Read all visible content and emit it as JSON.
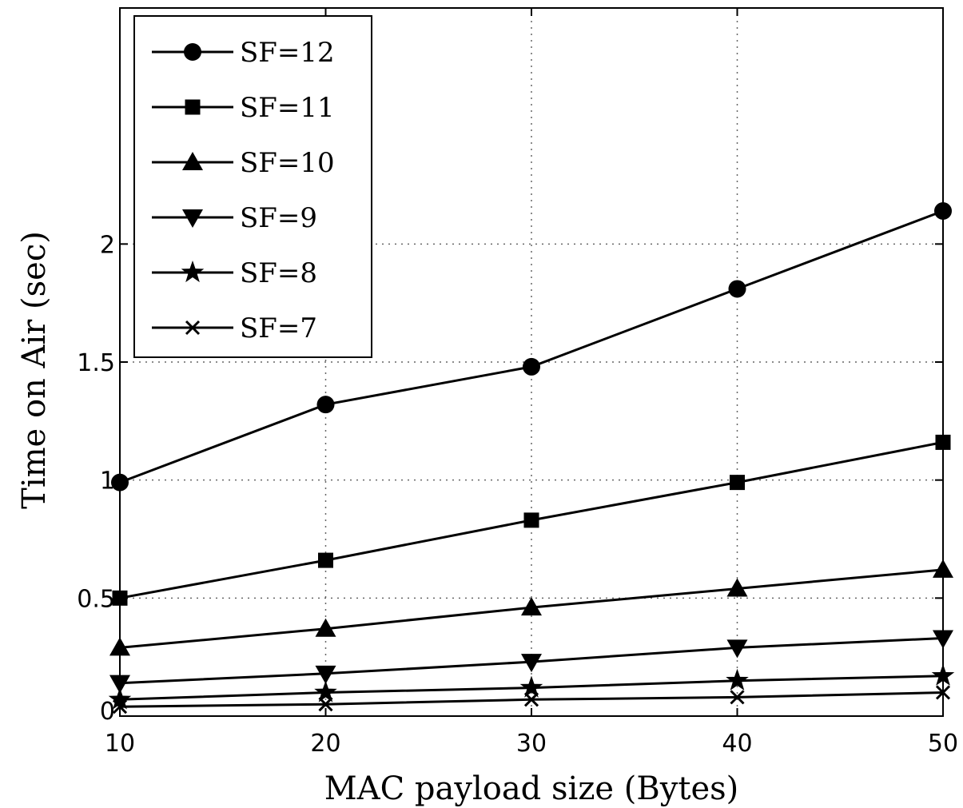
{
  "chart_data": {
    "type": "line",
    "xlabel": "MAC payload size (Bytes)",
    "ylabel": "Time on Air (sec)",
    "x": [
      10,
      20,
      30,
      40,
      50
    ],
    "xlim": [
      10,
      50
    ],
    "ylim": [
      0,
      3
    ],
    "xticks": [
      10,
      20,
      30,
      40,
      50
    ],
    "yticks": [
      0,
      0.5,
      1,
      1.5,
      2
    ],
    "ytick_labels": [
      "0",
      "0.5",
      "1",
      "1.5",
      "2"
    ],
    "grid": true,
    "grid_style": "dotted",
    "legend_position": "top-left",
    "series": [
      {
        "name": "SF=12",
        "marker": "circle",
        "values": [
          0.99,
          1.32,
          1.48,
          1.81,
          2.14
        ]
      },
      {
        "name": "SF=11",
        "marker": "square",
        "values": [
          0.5,
          0.66,
          0.83,
          0.99,
          1.16
        ]
      },
      {
        "name": "SF=10",
        "marker": "triangle-up",
        "values": [
          0.29,
          0.37,
          0.46,
          0.54,
          0.62
        ]
      },
      {
        "name": "SF=9",
        "marker": "triangle-down",
        "values": [
          0.14,
          0.18,
          0.23,
          0.29,
          0.33
        ]
      },
      {
        "name": "SF=8",
        "marker": "star",
        "values": [
          0.07,
          0.1,
          0.12,
          0.15,
          0.17
        ]
      },
      {
        "name": "SF=7",
        "marker": "x",
        "values": [
          0.04,
          0.05,
          0.07,
          0.08,
          0.1
        ]
      }
    ],
    "colors": {
      "line": "#000000",
      "grid": "#666666"
    }
  }
}
